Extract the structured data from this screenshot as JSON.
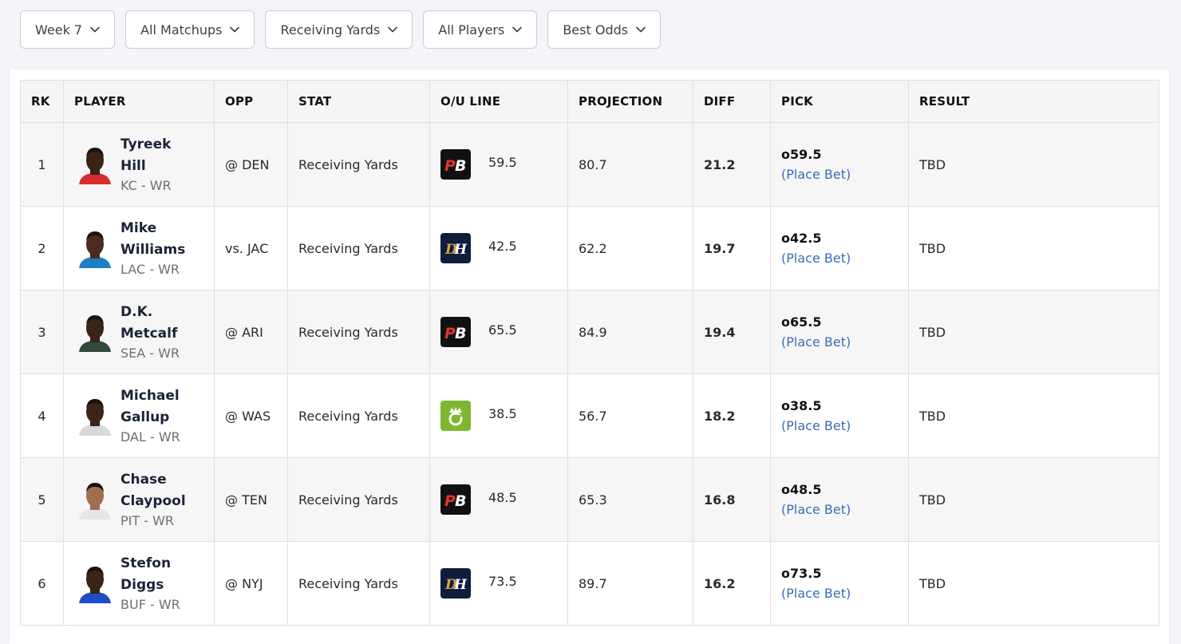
{
  "filters": [
    {
      "label": "Week 7",
      "name": "week-filter"
    },
    {
      "label": "All Matchups",
      "name": "matchups-filter"
    },
    {
      "label": "Receiving Yards",
      "name": "stat-filter"
    },
    {
      "label": "All Players",
      "name": "players-filter"
    },
    {
      "label": "Best Odds",
      "name": "odds-filter"
    }
  ],
  "table": {
    "headers": {
      "rk": "RK",
      "player": "PLAYER",
      "opp": "OPP",
      "stat": "STAT",
      "line": "O/U LINE",
      "projection": "PROJECTION",
      "diff": "DIFF",
      "pick": "PICK",
      "result": "RESULT"
    },
    "rows": [
      {
        "rk": "1",
        "first": "Tyreek",
        "last": "Hill",
        "team": "KC - WR",
        "opp": "@ DEN",
        "stat": "Receiving Yards",
        "book": "pb",
        "line": "59.5",
        "projection": "80.7",
        "diff": "21.2",
        "pick": "o59.5",
        "place_bet": "(Place Bet)",
        "result": "TBD",
        "skin": "#3b2316",
        "jersey": "#d92b2b"
      },
      {
        "rk": "2",
        "first": "Mike",
        "last": "Williams",
        "team": "LAC - WR",
        "opp": "vs. JAC",
        "stat": "Receiving Yards",
        "book": "dh",
        "line": "42.5",
        "projection": "62.2",
        "diff": "19.7",
        "pick": "o42.5",
        "place_bet": "(Place Bet)",
        "result": "TBD",
        "skin": "#4a2c1c",
        "jersey": "#1f7fc4"
      },
      {
        "rk": "3",
        "first": "D.K.",
        "last": "Metcalf",
        "team": "SEA - WR",
        "opp": "@ ARI",
        "stat": "Receiving Yards",
        "book": "pb",
        "line": "65.5",
        "projection": "84.9",
        "diff": "19.4",
        "pick": "o65.5",
        "place_bet": "(Place Bet)",
        "result": "TBD",
        "skin": "#3a2317",
        "jersey": "#2f4a3a"
      },
      {
        "rk": "4",
        "first": "Michael",
        "last": "Gallup",
        "team": "DAL - WR",
        "opp": "@ WAS",
        "stat": "Receiving Yards",
        "book": "dk",
        "line": "38.5",
        "projection": "56.7",
        "diff": "18.2",
        "pick": "o38.5",
        "place_bet": "(Place Bet)",
        "result": "TBD",
        "skin": "#3d2418",
        "jersey": "#d8d8d8"
      },
      {
        "rk": "5",
        "first": "Chase",
        "last": "Claypool",
        "team": "PIT - WR",
        "opp": "@ TEN",
        "stat": "Receiving Yards",
        "book": "pb",
        "line": "48.5",
        "projection": "65.3",
        "diff": "16.8",
        "pick": "o48.5",
        "place_bet": "(Place Bet)",
        "result": "TBD",
        "skin": "#a06d4f",
        "jersey": "#e6e6e6"
      },
      {
        "rk": "6",
        "first": "Stefon",
        "last": "Diggs",
        "team": "BUF - WR",
        "opp": "@ NYJ",
        "stat": "Receiving Yards",
        "book": "dh",
        "line": "73.5",
        "projection": "89.7",
        "diff": "16.2",
        "pick": "o73.5",
        "place_bet": "(Place Bet)",
        "result": "TBD",
        "skin": "#3b2316",
        "jersey": "#1d4fc4"
      }
    ]
  },
  "colors": {
    "link": "#3a6db5",
    "pb_bg": "#111111",
    "pb_accent": "#e5332a",
    "dh_bg": "#0f1d3d",
    "dh_accent": "#d6a545",
    "dk_bg": "#7cb82f"
  }
}
